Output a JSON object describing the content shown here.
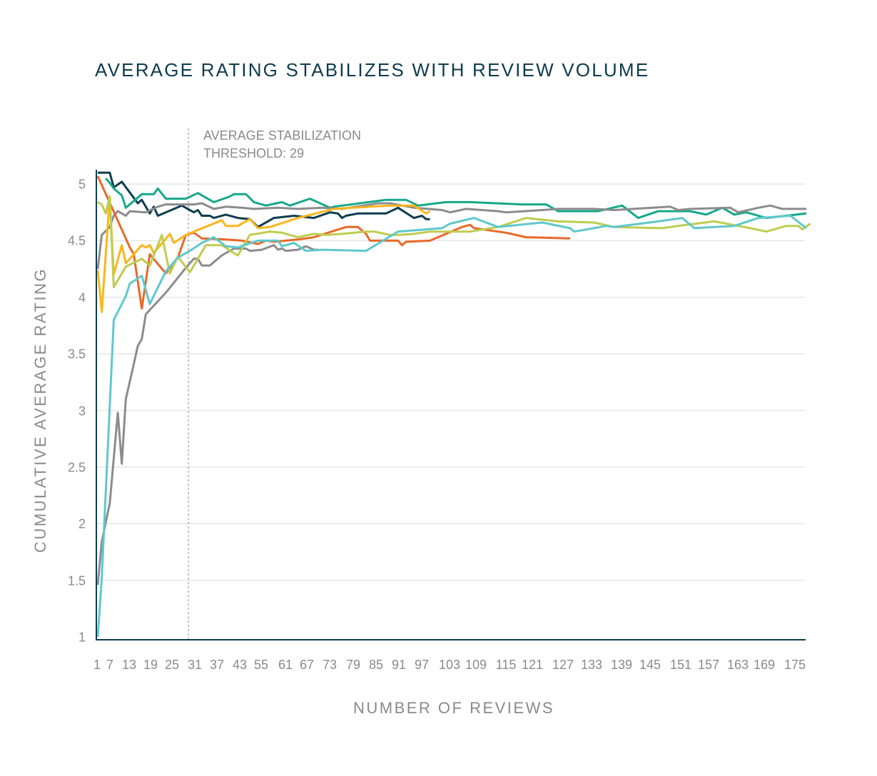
{
  "chart_data": {
    "type": "line",
    "title": "AVERAGE RATING STABILIZES WITH REVIEW VOLUME",
    "xlabel": "NUMBER OF REVIEWS",
    "ylabel": "CUMULATIVE AVERAGE RATING",
    "ylim": [
      1,
      5.1
    ],
    "xlim": [
      1,
      178
    ],
    "grid": "horizontal",
    "y_ticks": [
      "1",
      "1.5",
      "2",
      "2.5",
      "3",
      "3.5",
      "4",
      "4.5",
      "5"
    ],
    "x_ticks": [
      "1",
      "7",
      "13",
      "19",
      "25",
      "31",
      "37",
      "43",
      "55",
      "61",
      "67",
      "73",
      "79",
      "85",
      "91",
      "97",
      "103",
      "109",
      "115",
      "121",
      "127",
      "133",
      "139",
      "145",
      "151",
      "157",
      "163",
      "169",
      "175"
    ],
    "annotation": {
      "text": "AVERAGE STABILIZATION\nTHRESHOLD: 29",
      "value": 29,
      "style": "dotted vertical line"
    },
    "series": [
      {
        "color": "#0e3d4e",
        "points": [
          [
            1,
            5.1
          ],
          [
            4,
            5.1
          ],
          [
            5,
            4.97
          ],
          [
            7,
            5.02
          ],
          [
            11,
            4.83
          ],
          [
            12,
            4.86
          ],
          [
            14,
            4.74
          ],
          [
            15,
            4.8
          ],
          [
            16,
            4.72
          ],
          [
            22,
            4.81
          ],
          [
            25,
            4.75
          ],
          [
            26,
            4.77
          ],
          [
            27,
            4.72
          ],
          [
            29,
            4.72
          ],
          [
            30,
            4.7
          ],
          [
            33,
            4.73
          ],
          [
            36,
            4.7
          ],
          [
            39,
            4.69
          ],
          [
            41,
            4.62
          ],
          [
            45,
            4.7
          ],
          [
            50,
            4.72
          ],
          [
            55,
            4.7
          ],
          [
            59,
            4.75
          ],
          [
            61,
            4.74
          ],
          [
            62,
            4.7
          ],
          [
            63,
            4.72
          ],
          [
            66,
            4.74
          ],
          [
            73,
            4.74
          ],
          [
            76,
            4.79
          ],
          [
            80,
            4.7
          ],
          [
            82,
            4.72
          ],
          [
            83,
            4.69
          ],
          [
            84,
            4.69
          ]
        ]
      },
      {
        "color": "#17a88a",
        "points": [
          [
            3,
            5.05
          ],
          [
            4,
            5.01
          ],
          [
            5,
            4.96
          ],
          [
            7,
            4.9
          ],
          [
            8,
            4.79
          ],
          [
            12,
            4.91
          ],
          [
            15,
            4.91
          ],
          [
            16,
            4.96
          ],
          [
            18,
            4.87
          ],
          [
            23,
            4.87
          ],
          [
            26,
            4.92
          ],
          [
            30,
            4.84
          ],
          [
            34,
            4.89
          ],
          [
            35,
            4.91
          ],
          [
            38,
            4.91
          ],
          [
            40,
            4.84
          ],
          [
            43,
            4.81
          ],
          [
            47,
            4.84
          ],
          [
            49,
            4.81
          ],
          [
            54,
            4.87
          ],
          [
            59,
            4.79
          ],
          [
            60,
            4.8
          ],
          [
            73,
            4.86
          ],
          [
            78,
            4.86
          ],
          [
            81,
            4.81
          ],
          [
            88,
            4.84
          ],
          [
            94,
            4.84
          ],
          [
            107,
            4.82
          ],
          [
            113,
            4.82
          ],
          [
            116,
            4.76
          ],
          [
            126,
            4.76
          ],
          [
            132,
            4.81
          ],
          [
            136,
            4.7
          ],
          [
            141,
            4.76
          ],
          [
            149,
            4.76
          ],
          [
            153,
            4.73
          ],
          [
            157,
            4.79
          ],
          [
            160,
            4.73
          ],
          [
            163,
            4.75
          ],
          [
            168,
            4.7
          ],
          [
            178,
            4.74
          ]
        ]
      },
      {
        "color": "#8c8c8e",
        "points": [
          [
            1,
            4.25
          ],
          [
            2,
            4.55
          ],
          [
            4,
            4.62
          ],
          [
            5,
            4.72
          ],
          [
            6,
            4.76
          ],
          [
            8,
            4.72
          ],
          [
            9,
            4.76
          ],
          [
            13,
            4.75
          ],
          [
            16,
            4.8
          ],
          [
            18,
            4.82
          ],
          [
            25,
            4.82
          ],
          [
            27,
            4.83
          ],
          [
            30,
            4.78
          ],
          [
            33,
            4.8
          ],
          [
            37,
            4.79
          ],
          [
            40,
            4.78
          ],
          [
            46,
            4.79
          ],
          [
            51,
            4.78
          ],
          [
            57,
            4.79
          ],
          [
            62,
            4.78
          ],
          [
            71,
            4.83
          ],
          [
            74,
            4.83
          ],
          [
            80,
            4.79
          ],
          [
            87,
            4.77
          ],
          [
            89,
            4.75
          ],
          [
            93,
            4.78
          ],
          [
            101,
            4.76
          ],
          [
            103,
            4.75
          ],
          [
            112,
            4.77
          ],
          [
            116,
            4.78
          ],
          [
            125,
            4.78
          ],
          [
            130,
            4.77
          ],
          [
            144,
            4.8
          ],
          [
            146,
            4.77
          ],
          [
            149,
            4.78
          ],
          [
            159,
            4.79
          ],
          [
            161,
            4.75
          ],
          [
            166,
            4.79
          ],
          [
            169,
            4.81
          ],
          [
            172,
            4.78
          ],
          [
            178,
            4.78
          ]
        ]
      },
      {
        "color": "#8c8c8e",
        "points": [
          [
            1,
            1.46
          ],
          [
            2,
            1.84
          ],
          [
            4,
            2.18
          ],
          [
            6,
            2.98
          ],
          [
            7,
            2.53
          ],
          [
            8,
            3.1
          ],
          [
            10,
            3.41
          ],
          [
            11,
            3.57
          ],
          [
            12,
            3.63
          ],
          [
            13,
            3.85
          ],
          [
            18,
            4.04
          ],
          [
            23,
            4.26
          ],
          [
            25,
            4.34
          ],
          [
            26,
            4.34
          ],
          [
            27,
            4.28
          ],
          [
            29,
            4.28
          ],
          [
            30,
            4.31
          ],
          [
            32,
            4.37
          ],
          [
            35,
            4.43
          ],
          [
            38,
            4.43
          ],
          [
            39,
            4.41
          ],
          [
            42,
            4.42
          ],
          [
            45,
            4.46
          ],
          [
            46,
            4.42
          ],
          [
            47,
            4.43
          ],
          [
            48,
            4.41
          ],
          [
            51,
            4.42
          ],
          [
            53,
            4.45
          ],
          [
            55,
            4.42
          ],
          [
            56,
            4.42
          ]
        ]
      },
      {
        "color": "#e8692a",
        "points": [
          [
            1,
            5.07
          ],
          [
            9,
            4.44
          ],
          [
            10,
            4.38
          ],
          [
            12,
            3.9
          ],
          [
            14,
            4.38
          ],
          [
            18,
            4.21
          ],
          [
            21,
            4.35
          ],
          [
            23,
            4.55
          ],
          [
            25,
            4.57
          ],
          [
            27,
            4.52
          ],
          [
            33,
            4.51
          ],
          [
            37,
            4.5
          ],
          [
            41,
            4.47
          ],
          [
            43,
            4.5
          ],
          [
            45,
            4.49
          ],
          [
            51,
            4.51
          ],
          [
            55,
            4.53
          ],
          [
            63,
            4.62
          ],
          [
            66,
            4.62
          ],
          [
            68,
            4.56
          ],
          [
            69,
            4.5
          ],
          [
            76,
            4.5
          ],
          [
            77,
            4.46
          ],
          [
            78,
            4.49
          ],
          [
            84,
            4.5
          ],
          [
            92,
            4.62
          ],
          [
            94,
            4.64
          ],
          [
            95,
            4.61
          ],
          [
            103,
            4.57
          ],
          [
            108,
            4.53
          ],
          [
            119,
            4.52
          ]
        ]
      },
      {
        "color": "#fbb61c",
        "points": [
          [
            1,
            4.24
          ],
          [
            2,
            3.87
          ],
          [
            4,
            4.89
          ],
          [
            5,
            4.2
          ],
          [
            7,
            4.46
          ],
          [
            8,
            4.3
          ],
          [
            12,
            4.46
          ],
          [
            13,
            4.44
          ],
          [
            14,
            4.46
          ],
          [
            15,
            4.39
          ],
          [
            19,
            4.56
          ],
          [
            20,
            4.48
          ],
          [
            23,
            4.55
          ],
          [
            25,
            4.58
          ],
          [
            32,
            4.68
          ],
          [
            33,
            4.63
          ],
          [
            36,
            4.63
          ],
          [
            39,
            4.69
          ],
          [
            41,
            4.61
          ],
          [
            44,
            4.62
          ],
          [
            51,
            4.7
          ],
          [
            60,
            4.78
          ],
          [
            69,
            4.8
          ],
          [
            74,
            4.81
          ],
          [
            80,
            4.81
          ],
          [
            83,
            4.74
          ],
          [
            84,
            4.76
          ]
        ]
      },
      {
        "color": "#bfcc50",
        "points": [
          [
            1,
            4.84
          ],
          [
            2,
            4.82
          ],
          [
            3,
            4.74
          ],
          [
            4,
            4.89
          ],
          [
            5,
            4.09
          ],
          [
            8,
            4.27
          ],
          [
            12,
            4.34
          ],
          [
            14,
            4.28
          ],
          [
            17,
            4.55
          ],
          [
            19,
            4.21
          ],
          [
            21,
            4.36
          ],
          [
            24,
            4.22
          ],
          [
            28,
            4.46
          ],
          [
            32,
            4.46
          ],
          [
            35,
            4.39
          ],
          [
            36,
            4.37
          ],
          [
            39,
            4.55
          ],
          [
            44,
            4.58
          ],
          [
            47,
            4.57
          ],
          [
            51,
            4.53
          ],
          [
            55,
            4.56
          ],
          [
            58,
            4.55
          ],
          [
            62,
            4.56
          ],
          [
            68,
            4.58
          ],
          [
            70,
            4.58
          ],
          [
            74,
            4.55
          ],
          [
            76,
            4.55
          ],
          [
            80,
            4.56
          ],
          [
            84,
            4.58
          ],
          [
            87,
            4.58
          ],
          [
            94,
            4.58
          ],
          [
            101,
            4.62
          ],
          [
            108,
            4.7
          ],
          [
            116,
            4.67
          ],
          [
            125,
            4.66
          ],
          [
            130,
            4.62
          ],
          [
            142,
            4.61
          ],
          [
            146,
            4.63
          ],
          [
            155,
            4.67
          ],
          [
            164,
            4.61
          ],
          [
            168,
            4.58
          ],
          [
            173,
            4.63
          ],
          [
            176,
            4.63
          ],
          [
            177,
            4.6
          ],
          [
            179,
            4.65
          ]
        ]
      },
      {
        "color": "#5fc8cc",
        "points": [
          [
            1,
            1.0
          ],
          [
            2,
            1.52
          ],
          [
            5,
            3.8
          ],
          [
            8,
            4.01
          ],
          [
            9,
            4.12
          ],
          [
            12,
            4.19
          ],
          [
            14,
            3.94
          ],
          [
            18,
            4.23
          ],
          [
            21,
            4.35
          ],
          [
            24,
            4.41
          ],
          [
            27,
            4.48
          ],
          [
            30,
            4.53
          ],
          [
            33,
            4.45
          ],
          [
            36,
            4.44
          ],
          [
            41,
            4.5
          ],
          [
            46,
            4.5
          ],
          [
            47,
            4.45
          ],
          [
            50,
            4.48
          ],
          [
            53,
            4.41
          ],
          [
            57,
            4.42
          ],
          [
            68,
            4.41
          ],
          [
            76,
            4.58
          ],
          [
            87,
            4.61
          ],
          [
            89,
            4.65
          ],
          [
            95,
            4.7
          ],
          [
            101,
            4.62
          ],
          [
            112,
            4.66
          ],
          [
            119,
            4.61
          ],
          [
            120,
            4.58
          ],
          [
            125,
            4.61
          ],
          [
            128,
            4.63
          ],
          [
            130,
            4.62
          ],
          [
            141,
            4.67
          ],
          [
            147,
            4.7
          ],
          [
            150,
            4.61
          ],
          [
            160,
            4.63
          ],
          [
            166,
            4.7
          ],
          [
            174,
            4.72
          ],
          [
            178,
            4.61
          ]
        ]
      }
    ]
  }
}
